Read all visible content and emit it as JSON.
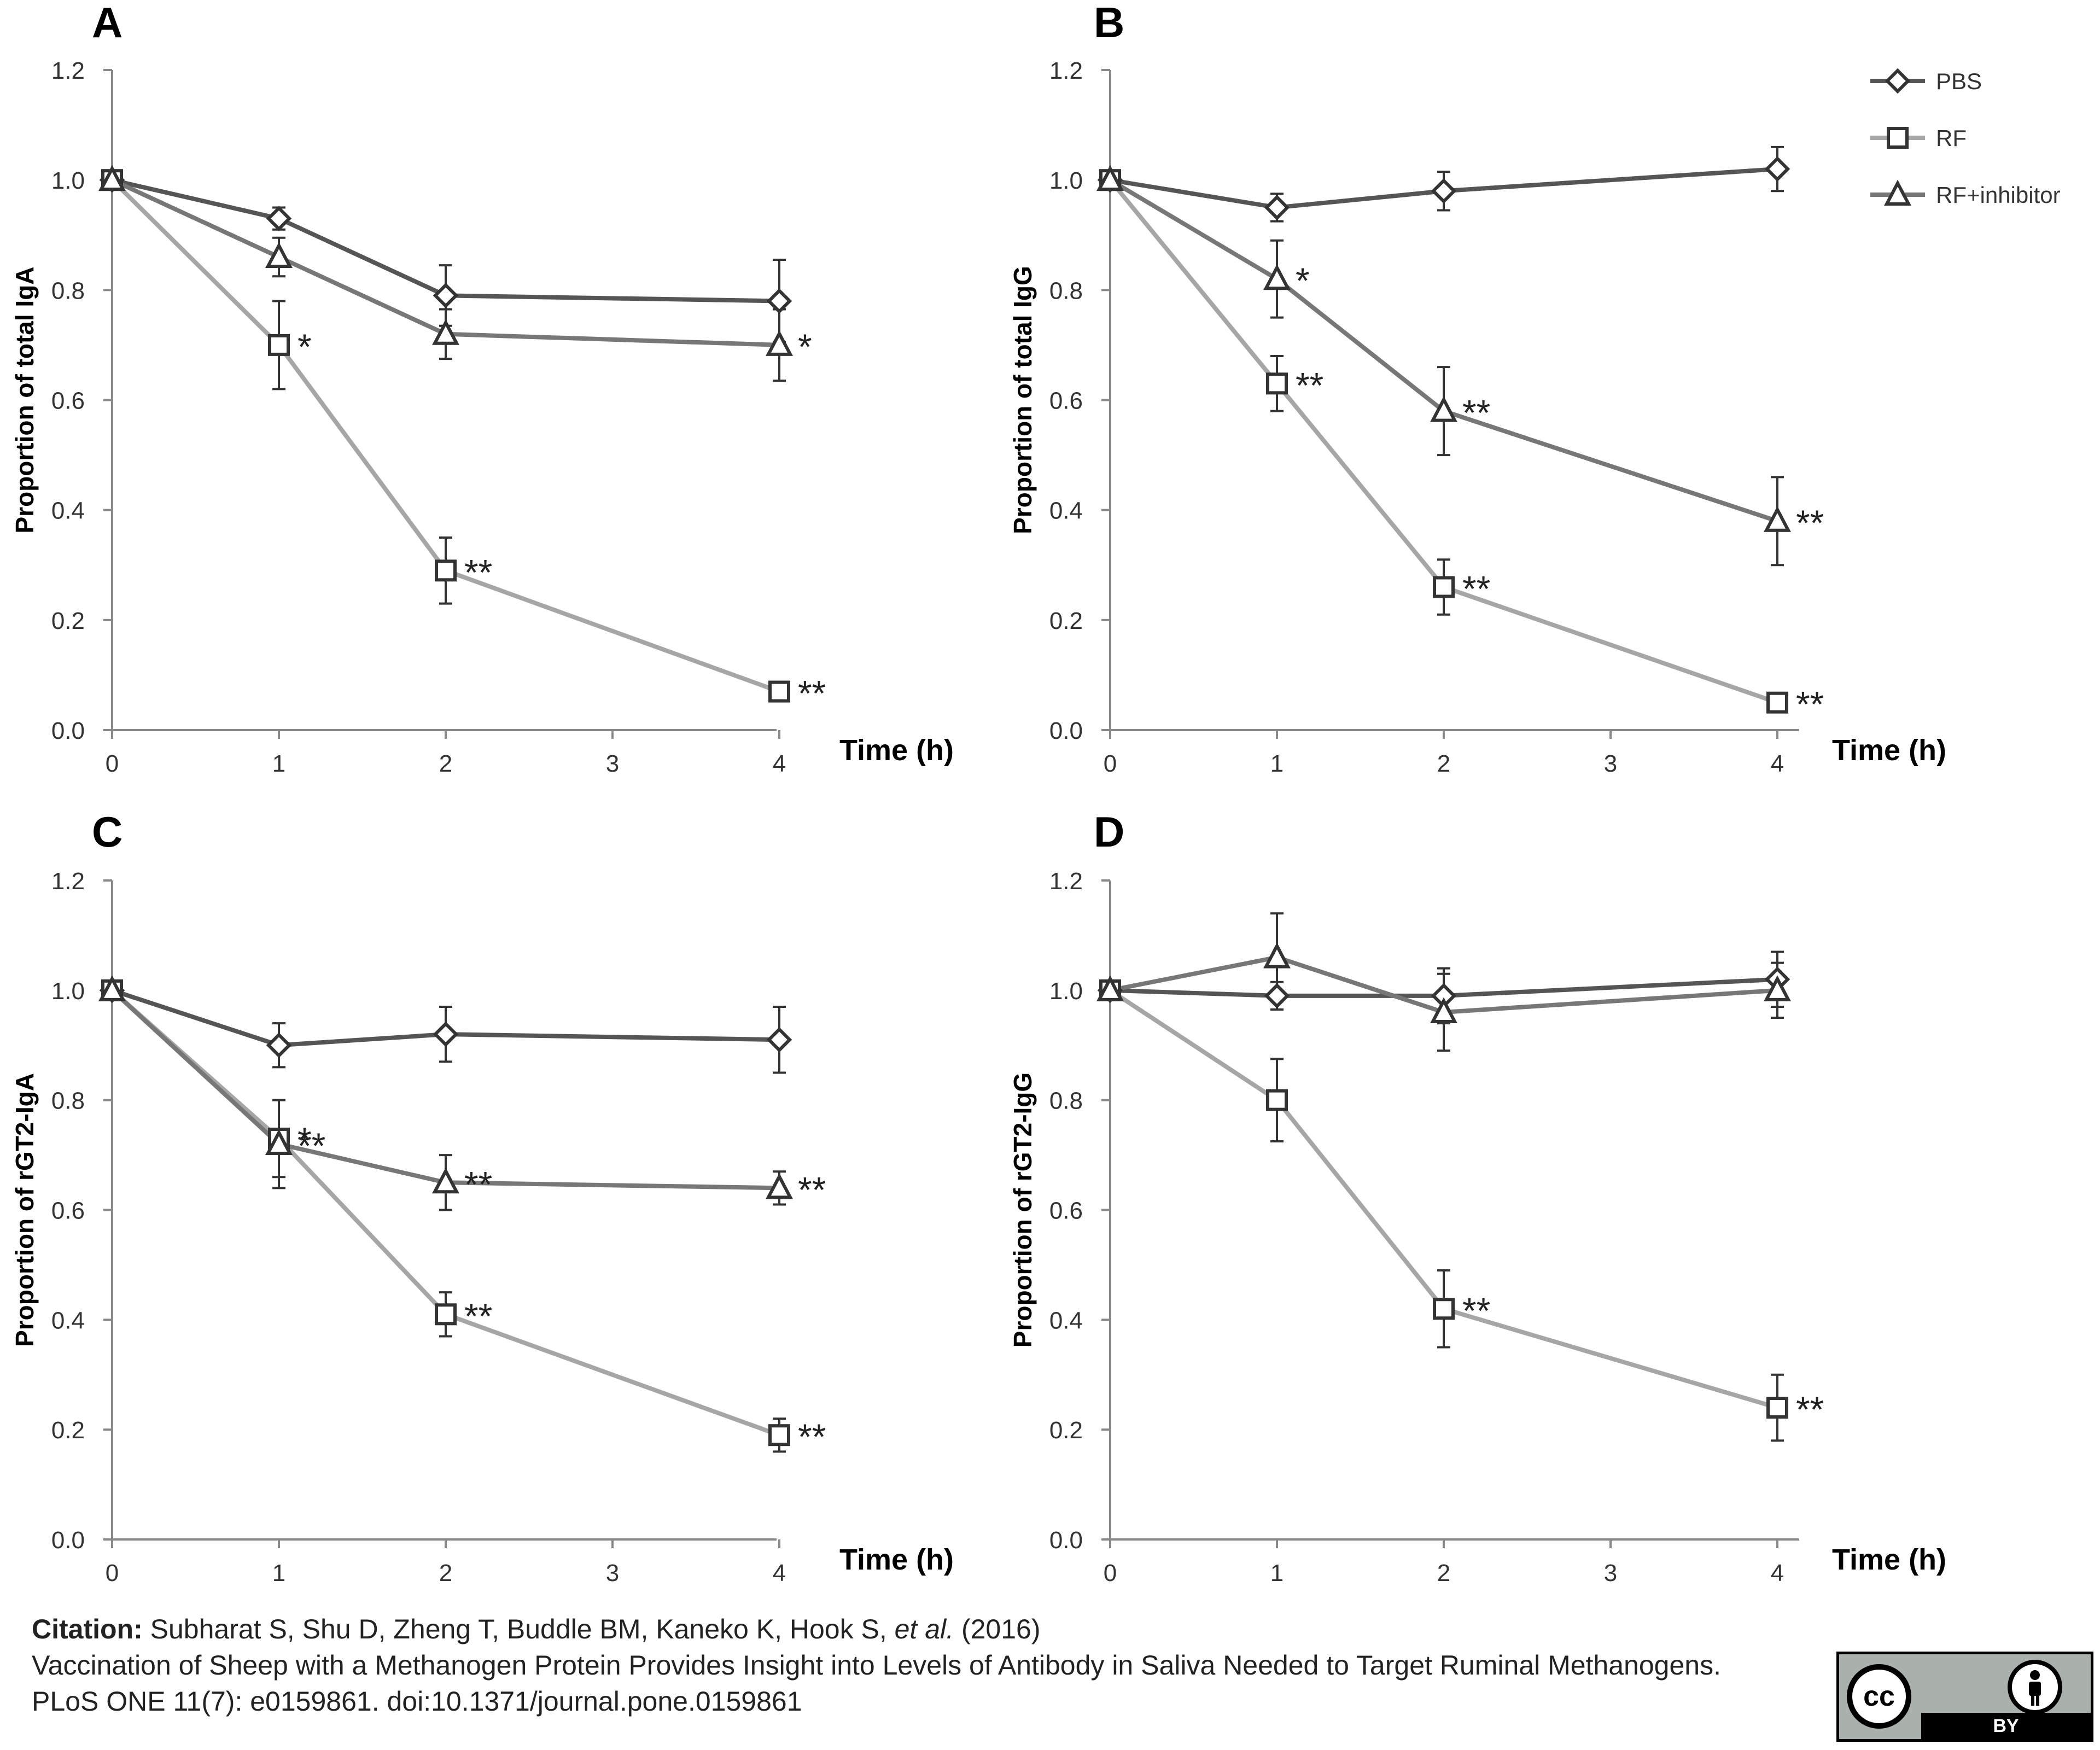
{
  "chart_data": [
    {
      "panel": "A",
      "type": "line",
      "xlabel": "Time (h)",
      "ylabel": "Proportion of total IgA",
      "x_ticks": [
        0,
        1,
        2,
        3,
        4
      ],
      "y_ticks": [
        "0.0",
        "0.2",
        "0.4",
        "0.6",
        "0.8",
        "1.0",
        "1.2"
      ],
      "xlim": [
        0,
        4
      ],
      "ylim": [
        0,
        1.2
      ],
      "series": [
        {
          "name": "PBS",
          "marker": "diamond",
          "color": "#555555",
          "x": [
            0,
            1,
            2,
            4
          ],
          "y": [
            1.0,
            0.93,
            0.79,
            0.78
          ],
          "err": [
            0,
            0.02,
            0.055,
            0.075
          ],
          "sig": [
            "",
            "",
            "",
            ""
          ]
        },
        {
          "name": "RF",
          "marker": "square",
          "color": "#a6a6a6",
          "x": [
            0,
            1,
            2,
            4
          ],
          "y": [
            1.0,
            0.7,
            0.29,
            0.07
          ],
          "err": [
            0,
            0.08,
            0.06,
            0.01
          ],
          "sig": [
            "",
            "*",
            "**",
            "**"
          ]
        },
        {
          "name": "RF+inhibitor",
          "marker": "triangle",
          "color": "#777777",
          "x": [
            0,
            1,
            2,
            4
          ],
          "y": [
            1.0,
            0.86,
            0.72,
            0.7
          ],
          "err": [
            0,
            0.035,
            0.045,
            0.065
          ],
          "sig": [
            "",
            "",
            "",
            "*"
          ]
        }
      ]
    },
    {
      "panel": "B",
      "type": "line",
      "xlabel": "Time (h)",
      "ylabel": "Proportion of total IgG",
      "x_ticks": [
        0,
        1,
        2,
        3,
        4
      ],
      "y_ticks": [
        "0.0",
        "0.2",
        "0.4",
        "0.6",
        "0.8",
        "1.0",
        "1.2"
      ],
      "xlim": [
        0,
        4
      ],
      "ylim": [
        0,
        1.2
      ],
      "series": [
        {
          "name": "PBS",
          "marker": "diamond",
          "color": "#555555",
          "x": [
            0,
            1,
            2,
            4
          ],
          "y": [
            1.0,
            0.95,
            0.98,
            1.02
          ],
          "err": [
            0,
            0.025,
            0.035,
            0.04
          ],
          "sig": [
            "",
            "",
            "",
            ""
          ]
        },
        {
          "name": "RF",
          "marker": "square",
          "color": "#a6a6a6",
          "x": [
            0,
            1,
            2,
            4
          ],
          "y": [
            1.0,
            0.63,
            0.26,
            0.05
          ],
          "err": [
            0,
            0.05,
            0.05,
            0.01
          ],
          "sig": [
            "",
            "**",
            "**",
            "**"
          ]
        },
        {
          "name": "RF+inhibitor",
          "marker": "triangle",
          "color": "#777777",
          "x": [
            0,
            1,
            2,
            4
          ],
          "y": [
            1.0,
            0.82,
            0.58,
            0.38
          ],
          "err": [
            0,
            0.07,
            0.08,
            0.08
          ],
          "sig": [
            "",
            "*",
            "**",
            "**"
          ]
        }
      ]
    },
    {
      "panel": "C",
      "type": "line",
      "xlabel": "Time (h)",
      "ylabel": "Proportion of rGT2-IgA",
      "x_ticks": [
        0,
        1,
        2,
        3,
        4
      ],
      "y_ticks": [
        "0.0",
        "0.2",
        "0.4",
        "0.6",
        "0.8",
        "1.0",
        "1.2"
      ],
      "xlim": [
        0,
        4
      ],
      "ylim": [
        0,
        1.2
      ],
      "series": [
        {
          "name": "PBS",
          "marker": "diamond",
          "color": "#555555",
          "x": [
            0,
            1,
            2,
            4
          ],
          "y": [
            1.0,
            0.9,
            0.92,
            0.91
          ],
          "err": [
            0,
            0.04,
            0.05,
            0.06
          ],
          "sig": [
            "",
            "",
            "",
            ""
          ]
        },
        {
          "name": "RF",
          "marker": "square",
          "color": "#a6a6a6",
          "x": [
            0,
            1,
            2,
            4
          ],
          "y": [
            1.0,
            0.73,
            0.41,
            0.19
          ],
          "err": [
            0,
            0.07,
            0.04,
            0.03
          ],
          "sig": [
            "",
            "*",
            "**",
            "**"
          ]
        },
        {
          "name": "RF+inhibitor",
          "marker": "triangle",
          "color": "#777777",
          "x": [
            0,
            1,
            2,
            4
          ],
          "y": [
            1.0,
            0.72,
            0.65,
            0.64
          ],
          "err": [
            0,
            0.08,
            0.05,
            0.03
          ],
          "sig": [
            "",
            "**",
            "**",
            "**"
          ]
        }
      ]
    },
    {
      "panel": "D",
      "type": "line",
      "xlabel": "Time (h)",
      "ylabel": "Proportion of rGT2-IgG",
      "x_ticks": [
        0,
        1,
        2,
        3,
        4
      ],
      "y_ticks": [
        "0.0",
        "0.2",
        "0.4",
        "0.6",
        "0.8",
        "1.0",
        "1.2"
      ],
      "xlim": [
        0,
        4
      ],
      "ylim": [
        0,
        1.2
      ],
      "series": [
        {
          "name": "PBS",
          "marker": "diamond",
          "color": "#555555",
          "x": [
            0,
            1,
            2,
            4
          ],
          "y": [
            1.0,
            0.99,
            0.99,
            1.02
          ],
          "err": [
            0,
            0.025,
            0.05,
            0.05
          ],
          "sig": [
            "",
            "",
            "",
            ""
          ]
        },
        {
          "name": "RF",
          "marker": "square",
          "color": "#a6a6a6",
          "x": [
            0,
            1,
            2,
            4
          ],
          "y": [
            1.0,
            0.8,
            0.42,
            0.24
          ],
          "err": [
            0,
            0.075,
            0.07,
            0.06
          ],
          "sig": [
            "",
            "",
            "**",
            "**"
          ]
        },
        {
          "name": "RF+inhibitor",
          "marker": "triangle",
          "color": "#777777",
          "x": [
            0,
            1,
            2,
            4
          ],
          "y": [
            1.0,
            1.06,
            0.96,
            1.0
          ],
          "err": [
            0,
            0.08,
            0.07,
            0.05
          ],
          "sig": [
            "",
            "",
            "",
            ""
          ]
        }
      ]
    }
  ],
  "legend": {
    "items": [
      {
        "label": "PBS",
        "marker": "diamond",
        "color": "#555555"
      },
      {
        "label": "RF",
        "marker": "square",
        "color": "#a6a6a6"
      },
      {
        "label": "RF+inhibitor",
        "marker": "triangle",
        "color": "#777777"
      }
    ]
  },
  "citation": {
    "label": "Citation:",
    "authors": "Subharat S, Shu D, Zheng T, Buddle BM, Kaneko K, Hook S,",
    "etal": "et al.",
    "year": "(2016)",
    "title": "Vaccination of Sheep with a Methanogen Protein Provides Insight into Levels of Antibody in Saliva Needed to Target Ruminal Methanogens.",
    "journal": "PLoS ONE 11(7): e0159861. doi:10.1371/journal.pone.0159861"
  },
  "license": {
    "cc": "cc",
    "by": "BY"
  }
}
